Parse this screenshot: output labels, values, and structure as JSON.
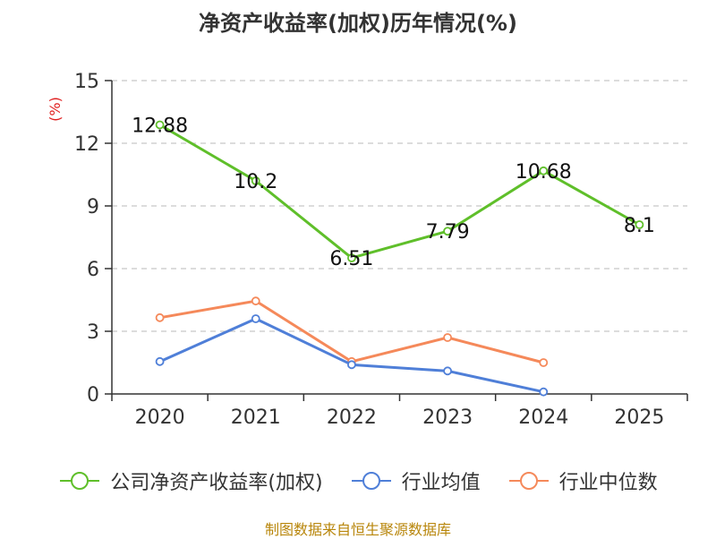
{
  "chart_data": {
    "type": "line",
    "title": "净资产收益率(加权)历年情况(%)",
    "ylabel": "(%)",
    "xlabel": "",
    "categories": [
      "2020",
      "2021",
      "2022",
      "2023",
      "2024",
      "2025"
    ],
    "ylim": [
      0,
      15
    ],
    "yticks": [
      0,
      3,
      6,
      9,
      12,
      15
    ],
    "grid": true,
    "legend_position": "bottom",
    "series": [
      {
        "name": "公司净资产收益率(加权)",
        "color": "#5fbf2a",
        "values": [
          12.88,
          10.2,
          6.51,
          7.79,
          10.68,
          8.1
        ],
        "labels": [
          "12.88",
          "10.2",
          "6.51",
          "7.79",
          "10.68",
          "8.1"
        ]
      },
      {
        "name": "行业均值",
        "color": "#4f7fd8",
        "values": [
          1.55,
          3.6,
          1.4,
          1.1,
          0.1,
          null
        ]
      },
      {
        "name": "行业中位数",
        "color": "#f5895a",
        "values": [
          3.65,
          4.45,
          1.55,
          2.7,
          1.5,
          null
        ]
      }
    ]
  },
  "source": "制图数据来自恒生聚源数据库"
}
